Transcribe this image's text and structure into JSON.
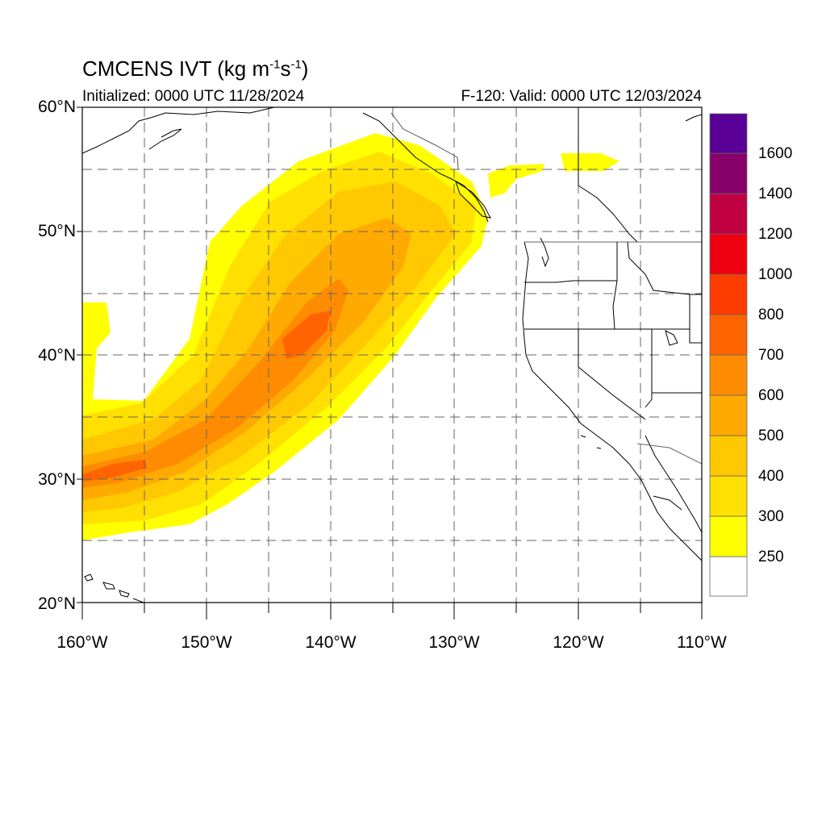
{
  "title_main": "CMCENS IVT (kg m",
  "title_exp1": "-1",
  "title_mid": "s",
  "title_exp2": "-1",
  "title_end": ")",
  "initialized": "Initialized: 0000 UTC 11/28/2024",
  "valid": "F-120: Valid: 0000 UTC 12/03/2024",
  "lat_labels": [
    "60°N",
    "50°N",
    "40°N",
    "30°N",
    "20°N"
  ],
  "lon_labels": [
    "160°W",
    "150°W",
    "140°W",
    "130°W",
    "120°W",
    "110°W"
  ],
  "colorbar": {
    "tick_labels": [
      "250",
      "300",
      "400",
      "500",
      "600",
      "700",
      "800",
      "1000",
      "1200",
      "1400",
      "1600"
    ],
    "colors": [
      "#ffffff",
      "#ffff00",
      "#ffe000",
      "#ffc800",
      "#ffaa00",
      "#ff8c00",
      "#ff6400",
      "#ff3c00",
      "#ee0010",
      "#c00040",
      "#88006a",
      "#5a0096"
    ]
  },
  "map": {
    "lon_range": [
      -160,
      -110
    ],
    "lat_range": [
      20,
      60
    ],
    "grid": true
  }
}
